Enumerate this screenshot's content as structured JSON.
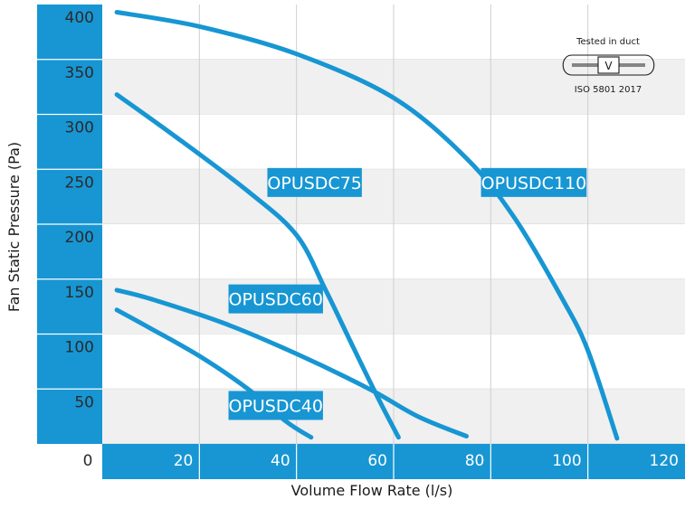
{
  "chart_data": {
    "type": "line",
    "title": "",
    "xlabel": "Volume Flow Rate (l/s)",
    "ylabel": "Fan Static Pressure (Pa)",
    "origin_label": "0",
    "xlim": [
      0,
      120
    ],
    "ylim": [
      0,
      400
    ],
    "x_ticks": [
      "20",
      "40",
      "60",
      "80",
      "100",
      "120"
    ],
    "y_ticks": [
      "400",
      "350",
      "300",
      "250",
      "200",
      "150",
      "100",
      "50"
    ],
    "grid": true,
    "series": [
      {
        "name": "OPUSDC110",
        "points": [
          [
            3,
            393
          ],
          [
            20,
            380
          ],
          [
            40,
            355
          ],
          [
            60,
            315
          ],
          [
            75,
            260
          ],
          [
            85,
            205
          ],
          [
            95,
            130
          ],
          [
            100,
            85
          ],
          [
            106,
            5
          ]
        ]
      },
      {
        "name": "OPUSDC75",
        "points": [
          [
            3,
            318
          ],
          [
            15,
            280
          ],
          [
            30,
            230
          ],
          [
            40,
            190
          ],
          [
            46,
            140
          ],
          [
            52,
            85
          ],
          [
            57,
            40
          ],
          [
            61,
            6
          ]
        ]
      },
      {
        "name": "OPUSDC60",
        "points": [
          [
            3,
            140
          ],
          [
            10,
            132
          ],
          [
            25,
            110
          ],
          [
            40,
            82
          ],
          [
            55,
            50
          ],
          [
            65,
            25
          ],
          [
            75,
            7
          ]
        ]
      },
      {
        "name": "OPUSDC40",
        "points": [
          [
            3,
            122
          ],
          [
            10,
            105
          ],
          [
            20,
            80
          ],
          [
            30,
            50
          ],
          [
            38,
            20
          ],
          [
            43,
            6
          ]
        ]
      }
    ],
    "series_label_positions": [
      {
        "name": "OPUSDC110",
        "x": 78,
        "y": 238
      },
      {
        "name": "OPUSDC75",
        "x": 34,
        "y": 238
      },
      {
        "name": "OPUSDC60",
        "x": 26,
        "y": 132
      },
      {
        "name": "OPUSDC40",
        "x": 26,
        "y": 35
      }
    ],
    "line_color": "#1796d3",
    "panel_colors": [
      "#ffffff",
      "#f0f0f0"
    ]
  },
  "badge": {
    "title": "Tested in duct",
    "symbol": "V",
    "standard": "ISO 5801 2017"
  }
}
